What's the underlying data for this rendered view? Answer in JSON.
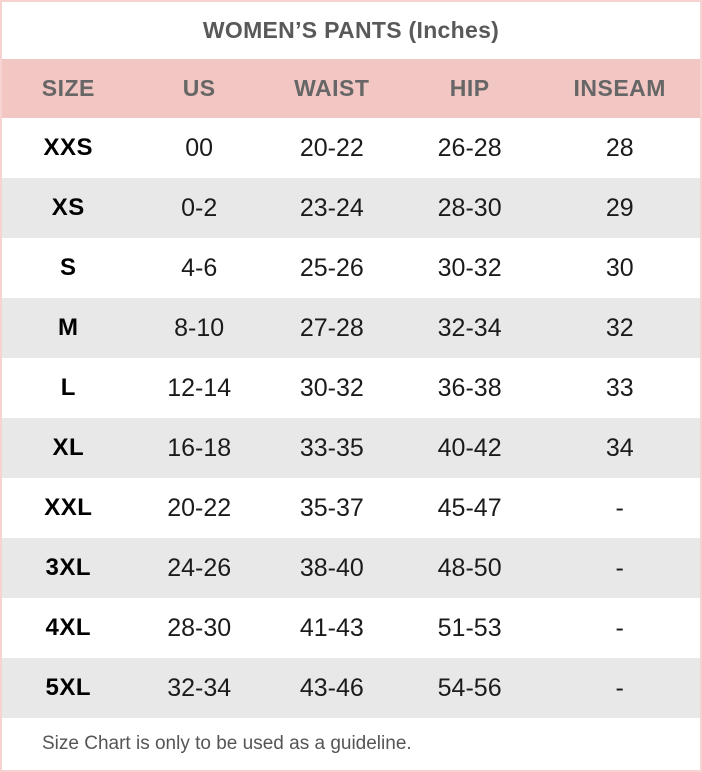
{
  "chart_data": {
    "type": "table",
    "title": "WOMEN’S PANTS (Inches)",
    "columns": [
      "SIZE",
      "US",
      "WAIST",
      "HIP",
      "INSEAM"
    ],
    "rows": [
      [
        "XXS",
        "00",
        "20-22",
        "26-28",
        "28"
      ],
      [
        "XS",
        "0-2",
        "23-24",
        "28-30",
        "29"
      ],
      [
        "S",
        "4-6",
        "25-26",
        "30-32",
        "30"
      ],
      [
        "M",
        "8-10",
        "27-28",
        "32-34",
        "32"
      ],
      [
        "L",
        "12-14",
        "30-32",
        "36-38",
        "33"
      ],
      [
        "XL",
        "16-18",
        "33-35",
        "40-42",
        "34"
      ],
      [
        "XXL",
        "20-22",
        "35-37",
        "45-47",
        "-"
      ],
      [
        "3XL",
        "24-26",
        "38-40",
        "48-50",
        "-"
      ],
      [
        "4XL",
        "28-30",
        "41-43",
        "51-53",
        "-"
      ],
      [
        "5XL",
        "32-34",
        "43-46",
        "54-56",
        "-"
      ]
    ],
    "note": "Size Chart is only to be used as a guideline.",
    "layout_hints": {
      "striped_rows": true,
      "header_position": "top"
    }
  },
  "colors": {
    "header_bg": "#f2c6c3",
    "outer_border": "#f6d2d0",
    "row_alt_bg": "#e8e8e8",
    "title_text": "#595959",
    "header_text": "#666666",
    "body_text": "#1b1b1b",
    "note_text": "#555555"
  }
}
